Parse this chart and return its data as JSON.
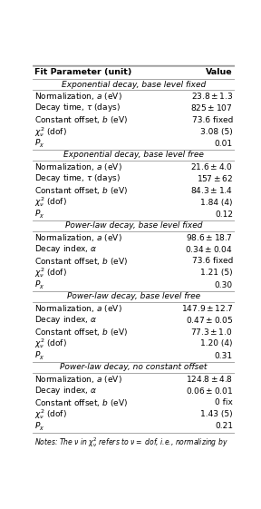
{
  "title_row": [
    "Fit Parameter (unit)",
    "Value"
  ],
  "sections": [
    {
      "header": "Exponential decay, base level fixed",
      "rows": [
        [
          "Normalization, $a$ (eV)",
          "$23.8 \\pm 1.3$"
        ],
        [
          "Decay time, $\\tau$ (days)",
          "$825 \\pm 107$"
        ],
        [
          "Constant offset, $b$ (eV)",
          "73.6 fixed"
        ],
        [
          "$\\chi^2_{\\nu}$ (dof)",
          "3.08 (5)"
        ],
        [
          "$P_{\\chi}$",
          "0.01"
        ]
      ]
    },
    {
      "header": "Exponential decay, base level free",
      "rows": [
        [
          "Normalization, $a$ (eV)",
          "$21.6 \\pm 4.0$"
        ],
        [
          "Decay time, $\\tau$ (days)",
          "$157 \\pm 62$"
        ],
        [
          "Constant offset, $b$ (eV)",
          "$84.3 \\pm 1.4$"
        ],
        [
          "$\\chi^2_{\\nu}$ (dof)",
          "1.84 (4)"
        ],
        [
          "$P_{\\chi}$",
          "0.12"
        ]
      ]
    },
    {
      "header": "Power-law decay, base level fixed",
      "rows": [
        [
          "Normalization, $a$ (eV)",
          "$98.6 \\pm 18.7$"
        ],
        [
          "Decay index, $\\alpha$",
          "$0.34 \\pm 0.04$"
        ],
        [
          "Constant offset, $b$ (eV)",
          "73.6 fixed"
        ],
        [
          "$\\chi^2_{\\nu}$ (dof)",
          "1.21 (5)"
        ],
        [
          "$P_{\\chi}$",
          "0.30"
        ]
      ]
    },
    {
      "header": "Power-law decay, base level free",
      "rows": [
        [
          "Normalization, $a$ (eV)",
          "$147.9 \\pm 12.7$"
        ],
        [
          "Decay index, $\\alpha$",
          "$0.47 \\pm 0.05$"
        ],
        [
          "Constant offset, $b$ (eV)",
          "$77.3 \\pm 1.0$"
        ],
        [
          "$\\chi^2_{\\nu}$ (dof)",
          "1.20 (4)"
        ],
        [
          "$P_{\\chi}$",
          "0.31"
        ]
      ]
    },
    {
      "header": "Power-law decay, no constant offset",
      "rows": [
        [
          "Normalization, $a$ (eV)",
          "$124.8 \\pm 4.8$"
        ],
        [
          "Decay index, $\\alpha$",
          "$0.06 \\pm 0.01$"
        ],
        [
          "Constant offset, $b$ (eV)",
          "0 fix"
        ],
        [
          "$\\chi^2_{\\nu}$ (dof)",
          "1.43 (5)"
        ],
        [
          "$P_{\\chi}$",
          "0.21"
        ]
      ]
    }
  ],
  "note": "Notes: The $\\nu$ in $\\chi^2_{\\nu}$ refers to $\\nu =$ dof, i.e., normalizing by",
  "bg_color": "#ffffff",
  "line_color": "#999999",
  "font_size": 6.5,
  "header_font_size": 6.5,
  "title_font_size": 6.8,
  "note_font_size": 5.5,
  "fig_width": 2.88,
  "fig_height": 5.61,
  "dpi": 100
}
